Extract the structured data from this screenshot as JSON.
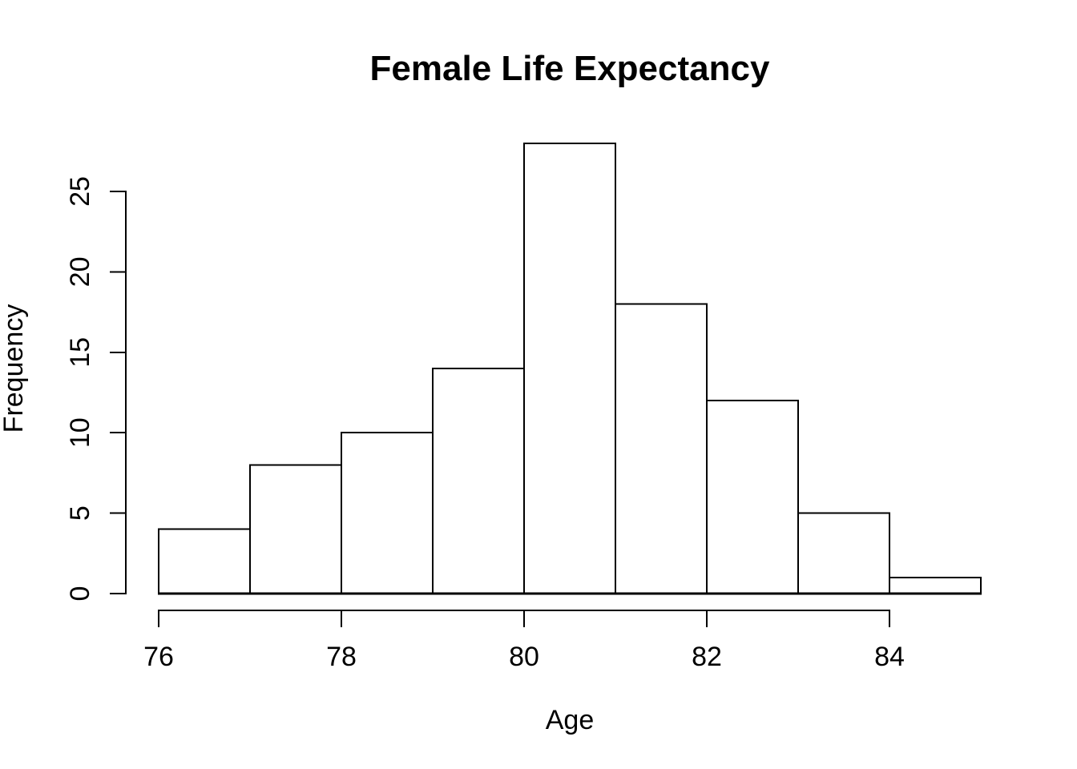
{
  "chart_data": {
    "type": "bar",
    "subtype": "histogram",
    "title": "Female Life Expectancy",
    "xlabel": "Age",
    "ylabel": "Frequency",
    "bin_edges": [
      76,
      77,
      78,
      79,
      80,
      81,
      82,
      83,
      84,
      85
    ],
    "counts": [
      4,
      8,
      10,
      14,
      28,
      18,
      12,
      5,
      1
    ],
    "x_ticks": [
      76,
      78,
      80,
      82,
      84
    ],
    "y_ticks": [
      0,
      5,
      10,
      15,
      20,
      25
    ],
    "xlim": [
      76,
      85
    ],
    "ylim": [
      0,
      28
    ],
    "grid": false,
    "legend": false,
    "colors": {
      "background": "#FFFFFF",
      "bar_fill": "#FFFFFF",
      "bar_stroke": "#000000",
      "axis": "#000000",
      "text": "#000000"
    }
  }
}
